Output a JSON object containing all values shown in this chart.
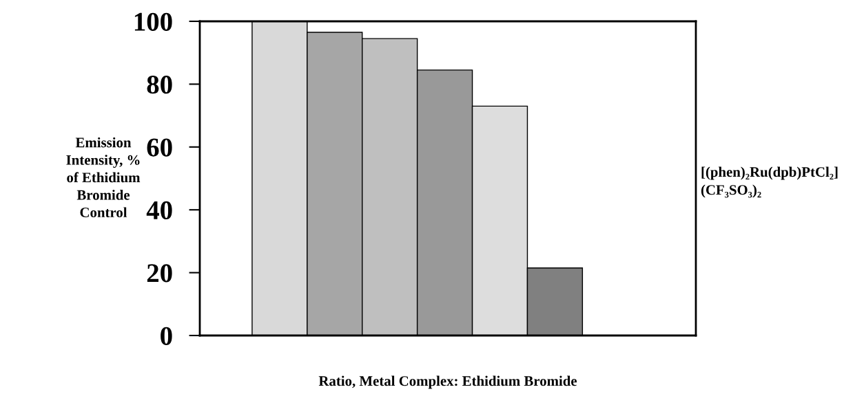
{
  "chart_data": {
    "type": "bar",
    "categories": [
      null,
      null,
      null,
      null,
      null,
      null
    ],
    "values": [
      100,
      96.5,
      94.5,
      84.5,
      73,
      21.5
    ],
    "colors": [
      "#d9d9d9",
      "#a6a6a6",
      "#bfbfbf",
      "#999999",
      "#dddddd",
      "#808080"
    ],
    "xlabel": "Ratio, Metal Complex: Ethidium Bromide",
    "ylabel": "Emission\nIntensity, %\nof Ethidium\nBromide\nControl",
    "annotations": [
      "[(phen)₂Ru(dpb)PtCl₂]\n(CF₃SO₃)₂"
    ],
    "ylim": [
      0,
      100
    ],
    "yticks": [
      0,
      20,
      40,
      60,
      80,
      100
    ],
    "grid": false,
    "legend": false
  }
}
